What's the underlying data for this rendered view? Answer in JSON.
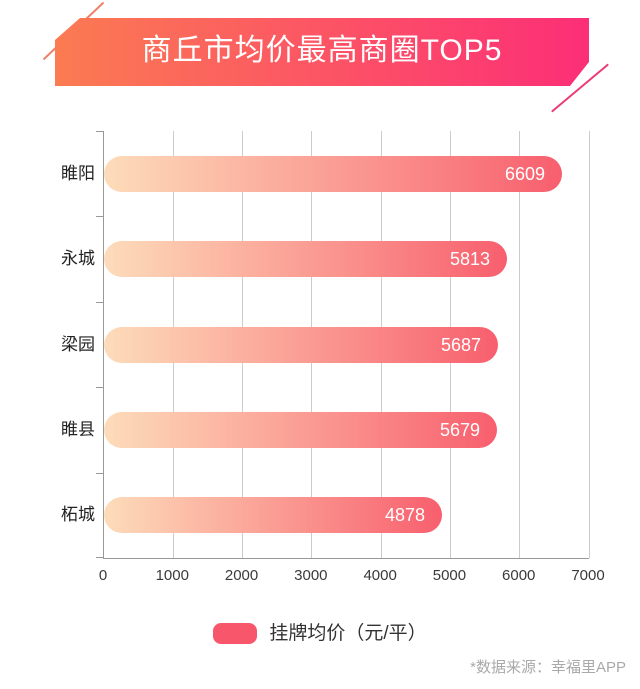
{
  "title": "商丘市均价最高商圈TOP5",
  "chart_data": {
    "type": "bar",
    "orientation": "horizontal",
    "title": "商丘市均价最高商圈TOP5",
    "categories": [
      "睢阳",
      "永城",
      "梁园",
      "睢县",
      "柘城"
    ],
    "values": [
      6609,
      5813,
      5687,
      5679,
      4878
    ],
    "series_name": "挂牌均价（元/平）",
    "xlim": [
      0,
      7000
    ],
    "x_ticks": [
      0,
      1000,
      2000,
      3000,
      4000,
      5000,
      6000,
      7000
    ],
    "grid": true,
    "legend_position": "bottom",
    "value_labels": "inside-end"
  },
  "legend": {
    "label": "挂牌均价（元/平）"
  },
  "footer": {
    "source_note": "*数据来源：幸福里APP"
  },
  "colors": {
    "banner_gradient_start": "#FB7B52",
    "banner_gradient_end": "#FC2E77",
    "bar_gradient_start": "#FDDCBA",
    "bar_gradient_end": "#F85F6E",
    "legend_swatch": "#F8566B",
    "gridline": "#CCCCCC",
    "axis": "#999999",
    "value_text": "#FFFFFF",
    "category_text": "#222222",
    "footer_text": "#A9A9A9"
  }
}
